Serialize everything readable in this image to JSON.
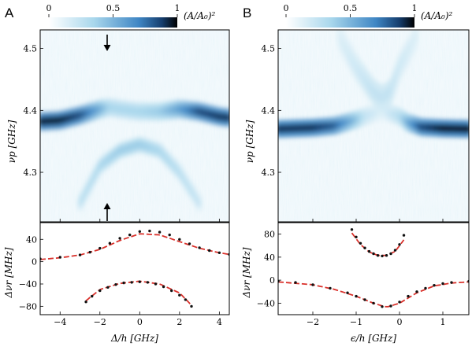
{
  "panels": [
    {
      "letter": "A",
      "colorbar": {
        "ticks": [
          "0",
          "0.5",
          "1"
        ],
        "label": "(A/A₀)²"
      },
      "top_ylabel": "νp [GHz]",
      "top_yticks": [
        "4.3",
        "4.4",
        "4.5"
      ],
      "bottom_ylabel": "Δνr [MHz]",
      "bottom_yticks": [
        "−80",
        "−40",
        "0",
        "40"
      ],
      "xlabel": "Δ/h [GHz]",
      "xticks": [
        "−4",
        "−2",
        "0",
        "2",
        "4"
      ]
    },
    {
      "letter": "B",
      "colorbar": {
        "ticks": [
          "0",
          "0.5",
          "1"
        ],
        "label": "(A/A₀)²"
      },
      "top_ylabel": "νp [GHz]",
      "top_yticks": [
        "4.3",
        "4.4",
        "4.5"
      ],
      "bottom_ylabel": "Δνr [MHz]",
      "bottom_yticks": [
        "−40",
        "0",
        "40",
        "80"
      ],
      "xlabel": "ϵ/h [GHz]",
      "xticks": [
        "−2",
        "−1",
        "0",
        "1"
      ]
    }
  ],
  "colors": {
    "data_points": "#111111",
    "fit_line": "#d9302a",
    "colormap_low": "#ffffff",
    "colormap_mid": "#4a90cc",
    "colormap_high": "#000000"
  },
  "chart_data": [
    {
      "type": "heatmap",
      "panel": "A-top",
      "x_range": [
        -5,
        4.5
      ],
      "y_range": [
        4.22,
        4.53
      ],
      "color_range": [
        0,
        1
      ],
      "features": [
        {
          "name": "main_band",
          "x": [
            -5,
            -4,
            -3,
            -2,
            -1.5,
            -1,
            0,
            1,
            2,
            3,
            4,
            4.5
          ],
          "y": [
            4.382,
            4.384,
            4.392,
            4.402,
            4.405,
            4.402,
            4.398,
            4.398,
            4.402,
            4.398,
            4.39,
            4.388
          ],
          "intensity": [
            0.95,
            0.95,
            0.85,
            0.55,
            0.35,
            0.35,
            0.35,
            0.4,
            0.6,
            0.85,
            0.9,
            0.9
          ]
        },
        {
          "name": "lower_arc",
          "x": [
            -3,
            -2,
            -1,
            0,
            1,
            2,
            3
          ],
          "y": [
            4.25,
            4.31,
            4.335,
            4.345,
            4.335,
            4.3,
            4.25
          ],
          "intensity": [
            0.3,
            0.35,
            0.4,
            0.4,
            0.35,
            0.3,
            0.25
          ]
        }
      ],
      "annotations": [
        {
          "type": "arrow",
          "x": -1.6,
          "direction": "down",
          "at": "top"
        },
        {
          "type": "arrow",
          "x": -1.6,
          "direction": "up",
          "at": "bottom"
        }
      ]
    },
    {
      "type": "scatter",
      "panel": "A-bottom",
      "xlim": [
        -5,
        4.5
      ],
      "ylim": [
        -95,
        70
      ],
      "series": [
        {
          "x": [
            -5,
            -4,
            -3,
            -2.5,
            -2,
            -1.5,
            -1,
            -0.5,
            0,
            0.5,
            1,
            1.5,
            2,
            2.5,
            3,
            3.5,
            4,
            4.5
          ],
          "y": [
            5,
            8,
            12,
            17,
            24,
            33,
            42,
            48,
            54,
            55,
            53,
            48,
            40,
            32,
            25,
            20,
            16,
            13
          ]
        },
        {
          "x": [
            -2.7,
            -2.4,
            -2,
            -1.6,
            -1.2,
            -0.8,
            -0.4,
            0,
            0.4,
            0.8,
            1.2,
            1.6,
            2,
            2.3,
            2.6
          ],
          "y": [
            -72,
            -62,
            -52,
            -46,
            -41,
            -38,
            -37,
            -36,
            -37,
            -40,
            -45,
            -52,
            -60,
            -68,
            -80
          ]
        }
      ],
      "fits": [
        {
          "x": [
            -5,
            -4,
            -3,
            -2,
            -1,
            0,
            1,
            2,
            3,
            4,
            4.5
          ],
          "y": [
            4,
            7,
            12,
            22,
            38,
            50,
            48,
            36,
            24,
            16,
            13
          ]
        },
        {
          "x": [
            -2.7,
            -2,
            -1,
            0,
            1,
            2,
            2.6
          ],
          "y": [
            -70,
            -50,
            -39,
            -35,
            -40,
            -56,
            -78
          ]
        }
      ]
    },
    {
      "type": "heatmap",
      "panel": "B-top",
      "x_range": [
        -2.8,
        1.6
      ],
      "y_range": [
        4.22,
        4.53
      ],
      "color_range": [
        0,
        1
      ],
      "features": [
        {
          "name": "main_band",
          "x": [
            -2.8,
            -2,
            -1.5,
            -1,
            -0.8,
            -0.4,
            0,
            0.2,
            0.5,
            1,
            1.6
          ],
          "y": [
            4.37,
            4.372,
            4.375,
            4.385,
            4.39,
            4.4,
            4.39,
            4.38,
            4.373,
            4.371,
            4.37
          ],
          "intensity": [
            0.9,
            0.9,
            0.8,
            0.45,
            0.25,
            0.15,
            0.3,
            0.55,
            0.85,
            0.95,
            0.95
          ]
        },
        {
          "name": "upper_wedge",
          "x": [
            -1.4,
            -1,
            -0.6,
            -0.4,
            -0.2,
            0,
            0.4
          ],
          "y": [
            4.52,
            4.47,
            4.43,
            4.42,
            4.43,
            4.47,
            4.52
          ],
          "intensity": [
            0.15,
            0.2,
            0.25,
            0.25,
            0.25,
            0.2,
            0.15
          ]
        }
      ]
    },
    {
      "type": "scatter",
      "panel": "B-bottom",
      "xlim": [
        -2.8,
        1.6
      ],
      "ylim": [
        -60,
        100
      ],
      "series": [
        {
          "x": [
            -2.8,
            -2.4,
            -2,
            -1.6,
            -1.2,
            -1,
            -0.8,
            -0.6,
            -0.4,
            -0.2,
            0,
            0.2,
            0.4,
            0.6,
            0.8,
            1,
            1.2,
            1.6
          ],
          "y": [
            -2,
            -4,
            -8,
            -14,
            -22,
            -28,
            -34,
            -40,
            -46,
            -45,
            -38,
            -28,
            -20,
            -14,
            -9,
            -6,
            -4,
            -2
          ]
        },
        {
          "x": [
            -1.1,
            -1.0,
            -0.9,
            -0.8,
            -0.7,
            -0.6,
            -0.5,
            -0.4,
            -0.3,
            -0.2,
            -0.1,
            0,
            0.1
          ],
          "y": [
            88,
            75,
            64,
            56,
            50,
            46,
            43,
            42,
            43,
            46,
            52,
            62,
            78
          ]
        }
      ],
      "fits": [
        {
          "x": [
            -2.8,
            -2,
            -1.5,
            -1,
            -0.6,
            -0.3,
            0,
            0.4,
            0.8,
            1.2,
            1.6
          ],
          "y": [
            -3,
            -8,
            -16,
            -28,
            -40,
            -47,
            -40,
            -22,
            -10,
            -5,
            -3
          ]
        },
        {
          "x": [
            -1.1,
            -0.9,
            -0.7,
            -0.5,
            -0.3,
            -0.1,
            0.1
          ],
          "y": [
            82,
            62,
            49,
            43,
            43,
            50,
            70
          ]
        }
      ]
    }
  ]
}
